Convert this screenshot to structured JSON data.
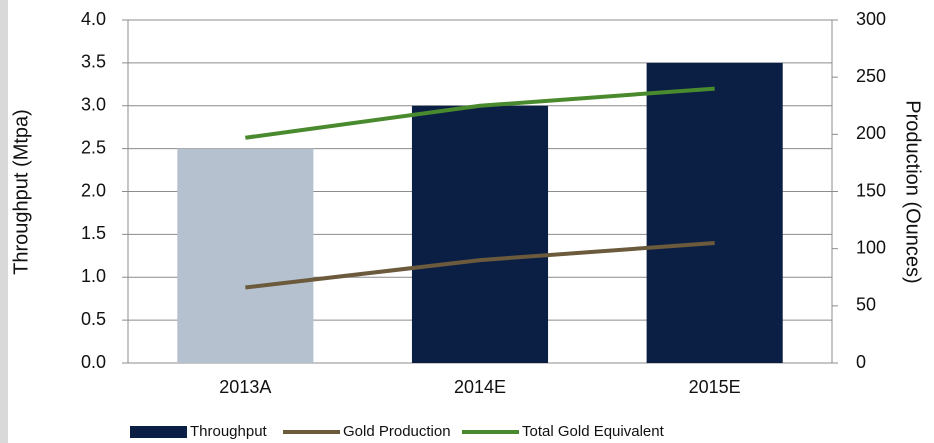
{
  "chart_data": {
    "type": "bar",
    "categories": [
      "2013A",
      "2014E",
      "2015E"
    ],
    "series": [
      {
        "name": "Throughput",
        "type": "bar",
        "color": "#0b1f45",
        "colors": [
          "#b5c1cf",
          "#0b1f45",
          "#0b1f45"
        ],
        "values": [
          2.5,
          3.0,
          3.5
        ]
      },
      {
        "name": "Gold Production",
        "type": "line",
        "axis": "y2",
        "color": "#6b5a3c",
        "values": [
          66,
          90,
          105
        ]
      },
      {
        "name": "Total Gold Equivalent",
        "type": "line",
        "axis": "y2",
        "color": "#4a8a2e",
        "values": [
          197,
          225,
          240
        ]
      }
    ],
    "ylabel": "Throughput (Mtpa)",
    "y2label": "Production (Ounces)",
    "ylim": [
      0,
      4
    ],
    "yticks": [
      {
        "value": 0,
        "label": "0.0"
      },
      {
        "value": 0.5,
        "label": "0.5"
      },
      {
        "value": 1,
        "label": "1.0"
      },
      {
        "value": 1.5,
        "label": "1.5"
      },
      {
        "value": 2,
        "label": "2.0"
      },
      {
        "value": 2.5,
        "label": "2.5"
      },
      {
        "value": 3,
        "label": "3.0"
      },
      {
        "value": 3.5,
        "label": "3.5"
      },
      {
        "value": 4,
        "label": "4.0"
      }
    ],
    "y2lim": [
      0,
      300
    ],
    "y2ticks": [
      0,
      50,
      100,
      150,
      200,
      250,
      300
    ],
    "grid": true,
    "legend": "bottom"
  }
}
